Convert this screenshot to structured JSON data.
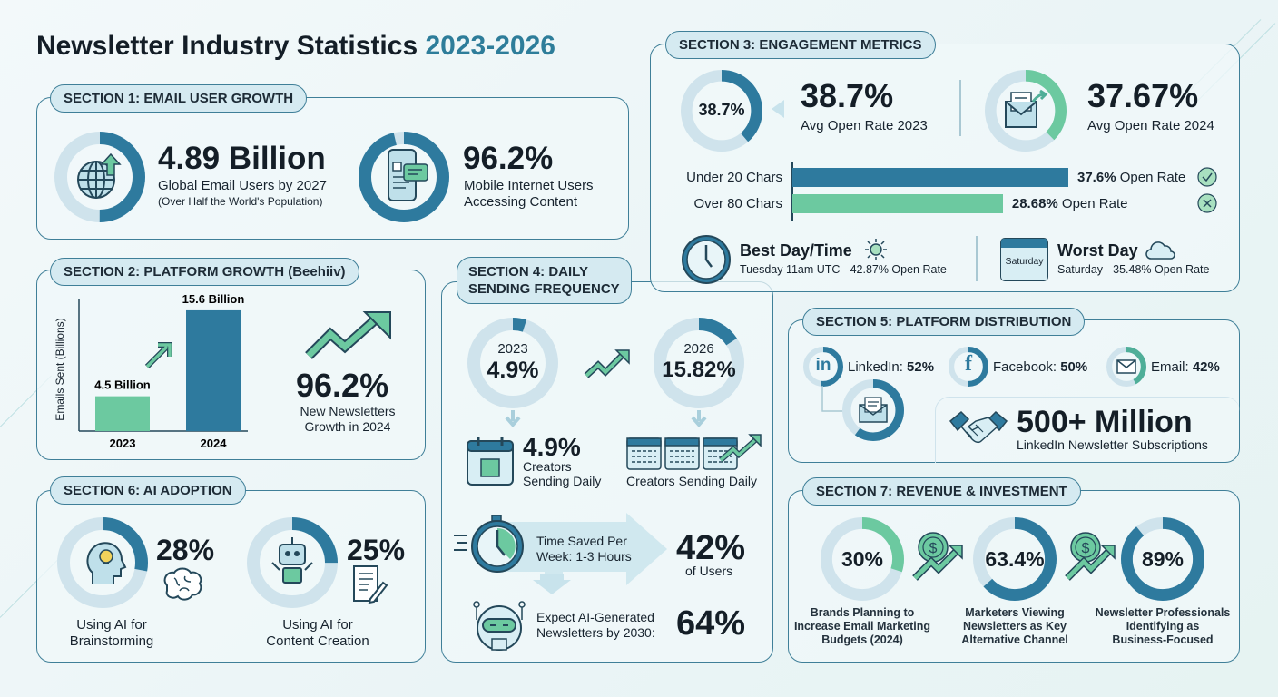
{
  "title": {
    "main": "Newsletter Industry Statistics",
    "years": "2023-2026",
    "accent": "#2e7d9a"
  },
  "colors": {
    "dark": "#2e7a9e",
    "green": "#6cc9a0",
    "track": "#cfe3ec",
    "text": "#17232e"
  },
  "section1": {
    "label": "SECTION 1: EMAIL USER GROWTH",
    "stat1": {
      "value": "4.89 Billion",
      "line1": "Global Email Users by 2027",
      "line2": "(Over Half the World's Population)",
      "ring": {
        "fraction": 0.5,
        "color": "#2e7a9e"
      },
      "icon": "globe-upload-icon"
    },
    "stat2": {
      "value": "96.2%",
      "line1": "Mobile Internet Users",
      "line2": "Accessing Content",
      "ring": {
        "fraction": 0.962,
        "color": "#2e7a9e"
      },
      "icon": "mobile-chat-icon"
    }
  },
  "section2": {
    "label": "SECTION 2: PLATFORM GROWTH (Beehiiv)",
    "growth": {
      "value": "96.2%",
      "line1": "New Newsletters",
      "line2": "Growth in 2024"
    }
  },
  "chart_data": {
    "type": "bar",
    "categories": [
      "2023",
      "2024"
    ],
    "values": [
      4.5,
      15.6
    ],
    "data_labels": [
      "4.5 Billion",
      "15.6 Billion"
    ],
    "colors": [
      "#6cc9a0",
      "#2e7a9e"
    ],
    "ylabel": "Emails Sent (Billions)",
    "ylim": [
      0,
      17
    ]
  },
  "section3": {
    "label": "SECTION 3: ENGAGEMENT METRICS",
    "rate2023": {
      "ring_text": "38.7%",
      "value": "38.7%",
      "caption": "Avg Open Rate 2023",
      "ring": {
        "fraction": 0.387,
        "color": "#2e7a9e"
      }
    },
    "rate2024": {
      "value": "37.67%",
      "caption": "Avg Open Rate 2024",
      "ring": {
        "fraction": 0.3767,
        "color": "#6cc9a0"
      }
    },
    "subject_bars": [
      {
        "label": "Under 20 Chars",
        "value": 37.6,
        "value_text": "37.6%",
        "suffix": " Open Rate",
        "color": "#2e7a9e",
        "status_icon": "check-circle-icon"
      },
      {
        "label": "Over 80 Chars",
        "value": 28.68,
        "value_text": "28.68%",
        "suffix": " Open Rate",
        "color": "#6cc9a0",
        "status_icon": "x-circle-icon"
      }
    ],
    "best": {
      "title": "Best Day/Time",
      "detail": "Tuesday 11am UTC - 42.87% Open Rate"
    },
    "worst": {
      "title": "Worst Day",
      "calendar_text": "Saturday",
      "detail": "Saturday - 35.48% Open Rate"
    }
  },
  "section4": {
    "label_line1": "SECTION 4: DAILY",
    "label_line2": "SENDING FREQUENCY",
    "y2023": {
      "year": "2023",
      "value": "4.9%",
      "ring": {
        "fraction": 0.049,
        "color": "#2e7a9e"
      }
    },
    "y2026": {
      "year": "2026",
      "value": "15.82%",
      "ring": {
        "fraction": 0.1582,
        "color": "#2e7a9e"
      }
    },
    "daily2023": {
      "value": "4.9%",
      "line1": "Creators",
      "line2": "Sending Daily"
    },
    "daily2026": {
      "caption": "Creators Sending Daily"
    },
    "time_saved": {
      "line1": "Time Saved Per",
      "line2": "Week: 1-3 Hours",
      "value": "42%",
      "caption": "of Users"
    },
    "ai_expect": {
      "line1": "Expect AI-Generated",
      "line2": "Newsletters by 2030:",
      "value": "64%"
    }
  },
  "section5": {
    "label": "SECTION 5: PLATFORM DISTRIBUTION",
    "platforms": [
      {
        "name": "LinkedIn: ",
        "value": "52%",
        "icon": "linkedin-icon",
        "ring": {
          "fraction": 0.52,
          "color": "#2e7a9e"
        }
      },
      {
        "name": "Facebook: ",
        "value": "50%",
        "icon": "facebook-icon",
        "ring": {
          "fraction": 0.5,
          "color": "#2e7a9e"
        }
      },
      {
        "name": "Email: ",
        "value": "42%",
        "icon": "mail-icon",
        "ring": {
          "fraction": 0.42,
          "color": "#4fae98"
        }
      }
    ],
    "envelope_ring": {
      "fraction": 0.6,
      "color": "#2e7a9e"
    },
    "subscriptions": {
      "value": "500+ Million",
      "caption": "LinkedIn Newsletter Subscriptions"
    }
  },
  "section6": {
    "label": "SECTION 6: AI ADOPTION",
    "items": [
      {
        "value": "28%",
        "line1": "Using AI for",
        "line2": "Brainstorming",
        "ring": {
          "fraction": 0.28,
          "color": "#2e7a9e"
        }
      },
      {
        "value": "25%",
        "line1": "Using AI for",
        "line2": "Content Creation",
        "ring": {
          "fraction": 0.25,
          "color": "#2e7a9e"
        }
      }
    ]
  },
  "section7": {
    "label": "SECTION 7: REVENUE & INVESTMENT",
    "items": [
      {
        "value": "30%",
        "line1": "Brands Planning to",
        "line2": "Increase Email Marketing",
        "line3": "Budgets (2024)",
        "ring": {
          "fraction": 0.3,
          "color": "#6cc9a0"
        }
      },
      {
        "value": "63.4%",
        "line1": "Marketers Viewing",
        "line2": "Newsletters as Key",
        "line3": "Alternative Channel",
        "ring": {
          "fraction": 0.634,
          "color": "#2e7a9e"
        }
      },
      {
        "value": "89%",
        "line1": "Newsletter Professionals",
        "line2": "Identifying as",
        "line3": "Business-Focused",
        "ring": {
          "fraction": 0.89,
          "color": "#2e7a9e"
        }
      }
    ]
  }
}
